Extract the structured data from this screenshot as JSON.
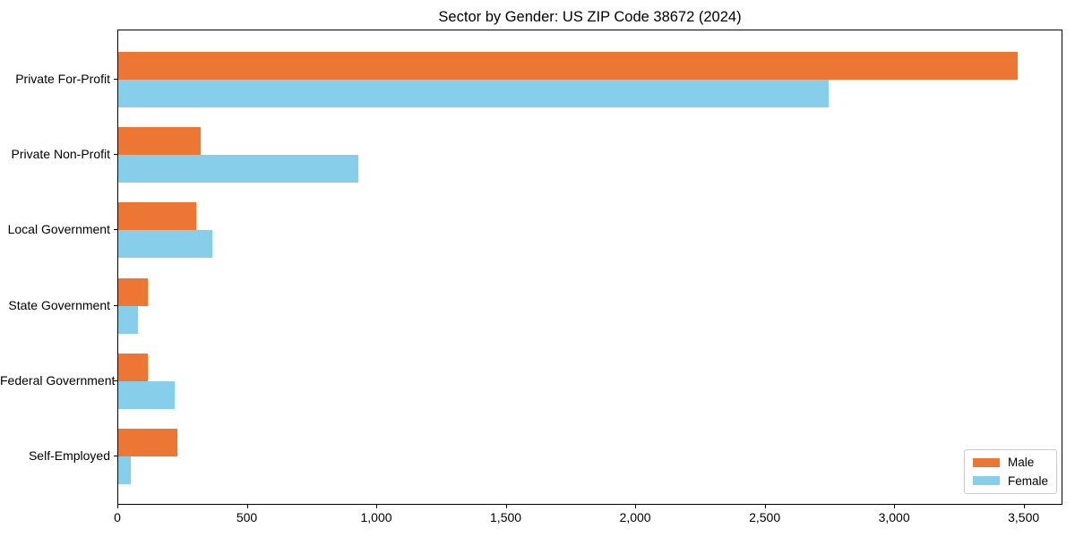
{
  "chart_data": {
    "type": "bar",
    "orientation": "horizontal",
    "title": "Sector by Gender: US ZIP Code 38672 (2024)",
    "categories": [
      "Private For-Profit",
      "Private Non-Profit",
      "Local Government",
      "State Government",
      "Federal Government",
      "Self-Employed"
    ],
    "series": [
      {
        "name": "Male",
        "color": "#EC7634",
        "values": [
          3480,
          320,
          300,
          115,
          115,
          230
        ]
      },
      {
        "name": "Female",
        "color": "#87CEEB",
        "values": [
          2750,
          930,
          365,
          75,
          220,
          50
        ]
      }
    ],
    "xlabel": "",
    "ylabel": "",
    "xlim": [
      0,
      3650
    ],
    "xticks": [
      0,
      500,
      1000,
      1500,
      2000,
      2500,
      3000,
      3500
    ],
    "xtick_labels": [
      "0",
      "500",
      "1,000",
      "1,500",
      "2,000",
      "2,500",
      "3,000",
      "3,500"
    ],
    "grid": false,
    "legend": {
      "position": "lower right"
    },
    "colors": {
      "male": "#EC7634",
      "female": "#87CEEB",
      "spine": "#000000",
      "legend_border": "#cccccc"
    }
  }
}
